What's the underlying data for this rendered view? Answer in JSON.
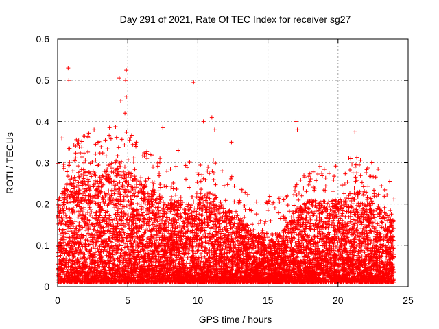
{
  "chart_data": {
    "type": "scatter",
    "title": "Day 291 of 2021, Rate Of TEC Index for receiver sg27",
    "xlabel": "GPS time / hours",
    "ylabel": "ROTI / TECUs",
    "xlim": [
      0,
      25
    ],
    "ylim": [
      0,
      0.6
    ],
    "xticks": [
      "0",
      "5",
      "10",
      "15",
      "20",
      "25"
    ],
    "yticks": [
      "0",
      "0.1",
      "0.2",
      "0.3",
      "0.4",
      "0.5",
      "0.6"
    ],
    "grid": true,
    "marker": "+",
    "color": "#ff0000",
    "data_range": [
      0,
      24
    ],
    "envelope": {
      "hours": [
        0,
        1,
        2,
        3,
        4,
        5,
        6,
        7,
        8,
        9,
        10,
        11,
        12,
        13,
        14,
        15,
        16,
        17,
        18,
        19,
        20,
        21,
        22,
        23,
        24
      ],
      "typical_max": [
        0.2,
        0.26,
        0.28,
        0.26,
        0.3,
        0.28,
        0.24,
        0.22,
        0.2,
        0.2,
        0.22,
        0.22,
        0.18,
        0.16,
        0.12,
        0.12,
        0.12,
        0.18,
        0.2,
        0.2,
        0.2,
        0.22,
        0.22,
        0.18,
        0.15
      ]
    },
    "peaks": [
      {
        "x": 0.75,
        "y": 0.53
      },
      {
        "x": 0.8,
        "y": 0.5
      },
      {
        "x": 4.9,
        "y": 0.525
      },
      {
        "x": 4.85,
        "y": 0.5
      },
      {
        "x": 4.4,
        "y": 0.505
      },
      {
        "x": 4.9,
        "y": 0.46
      },
      {
        "x": 4.5,
        "y": 0.45
      },
      {
        "x": 4.8,
        "y": 0.42
      },
      {
        "x": 9.7,
        "y": 0.495
      },
      {
        "x": 10.4,
        "y": 0.4
      },
      {
        "x": 11.0,
        "y": 0.41
      },
      {
        "x": 11.2,
        "y": 0.38
      },
      {
        "x": 7.5,
        "y": 0.385
      },
      {
        "x": 2.6,
        "y": 0.38
      },
      {
        "x": 3.7,
        "y": 0.385
      },
      {
        "x": 17.0,
        "y": 0.4
      },
      {
        "x": 17.1,
        "y": 0.38
      },
      {
        "x": 21.2,
        "y": 0.375
      },
      {
        "x": 0.3,
        "y": 0.36
      },
      {
        "x": 3.4,
        "y": 0.355
      },
      {
        "x": 12.4,
        "y": 0.35
      },
      {
        "x": 8.6,
        "y": 0.33
      },
      {
        "x": 20.9,
        "y": 0.31
      },
      {
        "x": 22.4,
        "y": 0.3
      },
      {
        "x": 5.6,
        "y": 0.35
      },
      {
        "x": 6.6,
        "y": 0.32
      }
    ]
  }
}
